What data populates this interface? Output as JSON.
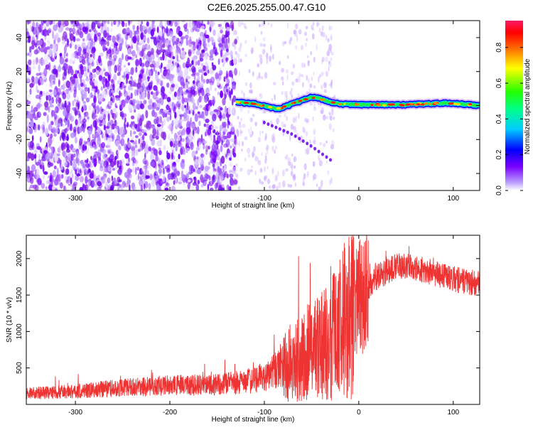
{
  "title": "C2E6.2025.255.00.47.G10",
  "chart_data": [
    {
      "type": "heatmap",
      "name": "spectrogram",
      "xlabel": "Height of straight line (km)",
      "ylabel": "Frequency (Hz)",
      "xlim": [
        -352,
        128
      ],
      "ylim": [
        -50,
        50
      ],
      "xticks": [
        -300,
        -200,
        -100,
        0,
        100
      ],
      "yticks": [
        -40,
        -20,
        0,
        20,
        40
      ],
      "colorbar": {
        "label": "Normalized spectral amplitude",
        "range": [
          0.0,
          0.95
        ],
        "ticks": [
          "0.0",
          "0.2",
          "0.4",
          "0.6",
          "0.8"
        ]
      },
      "features": {
        "noise_region_height_km": [
          -352,
          -130
        ],
        "tone_start_height_km": -130,
        "tone_frequency_hz_at": [
          [
            -130,
            2
          ],
          [
            -110,
            1
          ],
          [
            -95,
            -1
          ],
          [
            -85,
            -2
          ],
          [
            -75,
            0
          ],
          [
            -60,
            3
          ],
          [
            -50,
            5
          ],
          [
            -40,
            4
          ],
          [
            -30,
            2
          ],
          [
            -20,
            1
          ],
          [
            0,
            0.5
          ],
          [
            50,
            0.5
          ],
          [
            95,
            1.5
          ],
          [
            128,
            0
          ]
        ],
        "secondary_branch_hz_at": [
          [
            -100,
            -10
          ],
          [
            -70,
            -17
          ],
          [
            -50,
            -24
          ],
          [
            -30,
            -32
          ]
        ]
      }
    },
    {
      "type": "line",
      "name": "snr",
      "xlabel": "Height of straight line (km)",
      "ylabel": "SNR (10 * v/v)",
      "xlim": [
        -352,
        128
      ],
      "ylim": [
        0,
        2320
      ],
      "xticks": [
        -300,
        -200,
        -100,
        0,
        100
      ],
      "yticks": [
        500,
        1000,
        1500,
        2000
      ],
      "series": [
        {
          "name": "SNR",
          "color": "#ee3333",
          "envelope_x": [
            -352,
            -300,
            -250,
            -200,
            -150,
            -120,
            -100,
            -80,
            -60,
            -40,
            -20,
            -10,
            0,
            10,
            20,
            40,
            60,
            80,
            100,
            128
          ],
          "envelope_y": [
            150,
            180,
            230,
            260,
            270,
            310,
            380,
            520,
            650,
            800,
            1050,
            1250,
            1450,
            1600,
            1750,
            1900,
            1880,
            1800,
            1720,
            1650
          ]
        }
      ]
    }
  ]
}
